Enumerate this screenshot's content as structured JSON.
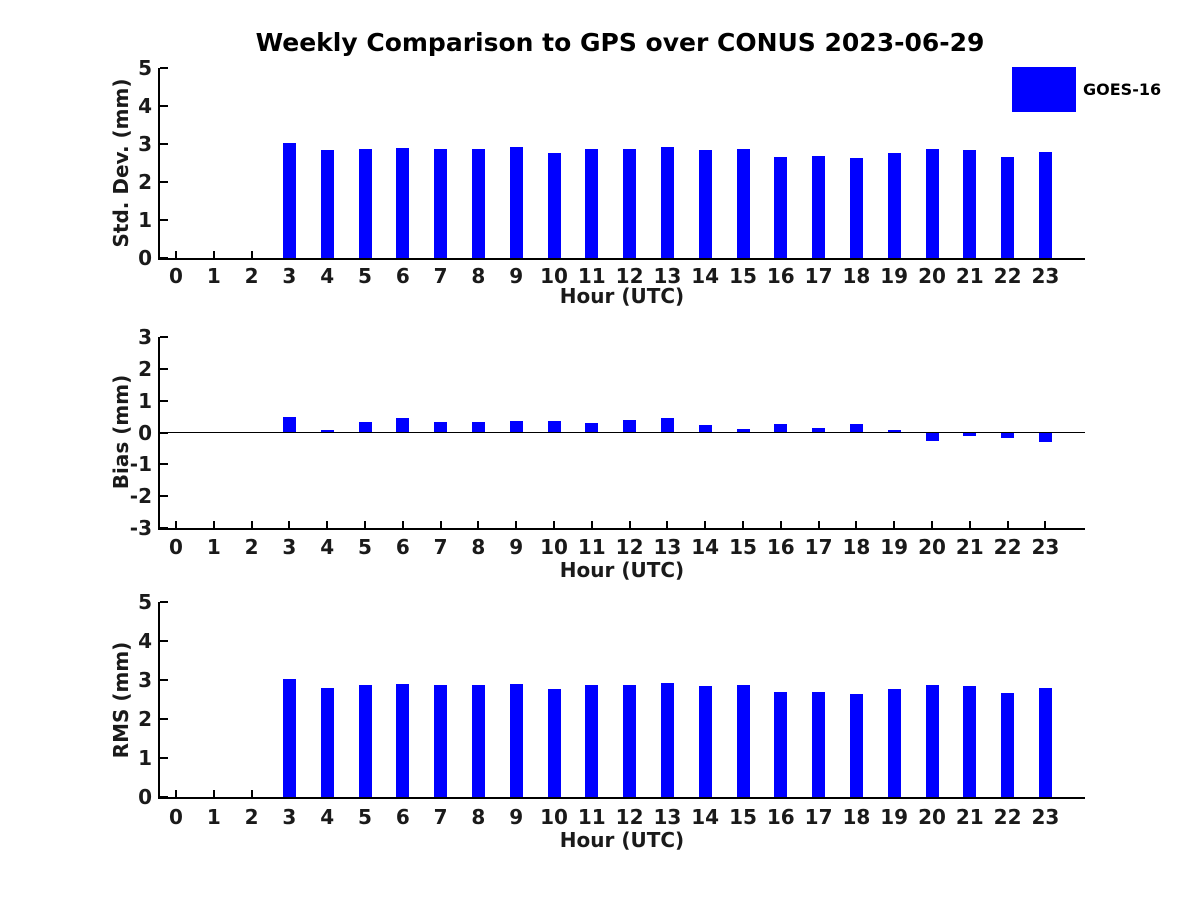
{
  "title": "Weekly Comparison to GPS over CONUS 2023-06-29",
  "legend": {
    "label": "GOES-16",
    "color": "#0000FF"
  },
  "colors": {
    "bar": "#0000FF",
    "axis": "#000000",
    "text": "#1a1a1a"
  },
  "chart_data": [
    {
      "type": "bar",
      "id": "std-dev",
      "title": "",
      "ylabel": "Std. Dev. (mm)",
      "xlabel": "Hour (UTC)",
      "ylim": [
        0,
        5
      ],
      "yticks": [
        0,
        1,
        2,
        3,
        4,
        5
      ],
      "legend_entry": "GOES-16",
      "legend_position": "top-right",
      "grid": false,
      "categories": [
        0,
        1,
        2,
        3,
        4,
        5,
        6,
        7,
        8,
        9,
        10,
        11,
        12,
        13,
        14,
        15,
        16,
        17,
        18,
        19,
        20,
        21,
        22,
        23
      ],
      "values": [
        null,
        null,
        null,
        3.02,
        2.83,
        2.86,
        2.9,
        2.86,
        2.86,
        2.91,
        2.77,
        2.86,
        2.87,
        2.91,
        2.84,
        2.88,
        2.67,
        2.68,
        2.63,
        2.76,
        2.86,
        2.83,
        2.66,
        2.8
      ]
    },
    {
      "type": "bar",
      "id": "bias",
      "title": "",
      "ylabel": "Bias (mm)",
      "xlabel": "Hour (UTC)",
      "ylim": [
        -3,
        3
      ],
      "yticks": [
        -3,
        -2,
        -1,
        0,
        1,
        2,
        3
      ],
      "grid": false,
      "categories": [
        0,
        1,
        2,
        3,
        4,
        5,
        6,
        7,
        8,
        9,
        10,
        11,
        12,
        13,
        14,
        15,
        16,
        17,
        18,
        19,
        20,
        21,
        22,
        23
      ],
      "values": [
        null,
        null,
        null,
        0.5,
        0.08,
        0.33,
        0.45,
        0.33,
        0.33,
        0.37,
        0.36,
        0.3,
        0.38,
        0.47,
        0.23,
        0.1,
        0.27,
        0.14,
        0.27,
        0.07,
        -0.28,
        -0.1,
        -0.17,
        -0.3
      ]
    },
    {
      "type": "bar",
      "id": "rms",
      "title": "",
      "ylabel": "RMS (mm)",
      "xlabel": "Hour (UTC)",
      "ylim": [
        0,
        5
      ],
      "yticks": [
        0,
        1,
        2,
        3,
        4,
        5
      ],
      "grid": false,
      "categories": [
        0,
        1,
        2,
        3,
        4,
        5,
        6,
        7,
        8,
        9,
        10,
        11,
        12,
        13,
        14,
        15,
        16,
        17,
        18,
        19,
        20,
        21,
        22,
        23
      ],
      "values": [
        null,
        null,
        null,
        3.03,
        2.8,
        2.86,
        2.91,
        2.86,
        2.86,
        2.91,
        2.78,
        2.86,
        2.88,
        2.93,
        2.85,
        2.88,
        2.68,
        2.69,
        2.64,
        2.77,
        2.87,
        2.84,
        2.66,
        2.8
      ]
    }
  ]
}
